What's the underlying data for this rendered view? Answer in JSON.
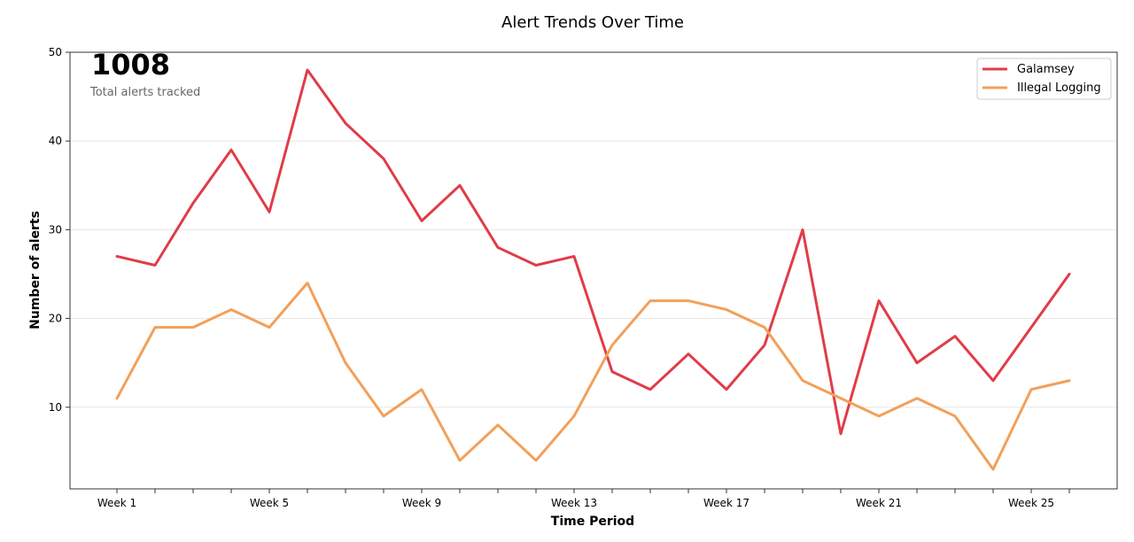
{
  "chart_data": {
    "type": "line",
    "title": "Alert Trends Over Time",
    "xlabel": "Time Period",
    "ylabel": "Number of alerts",
    "ylim": [
      0.8,
      50
    ],
    "yticks": [
      10,
      20,
      30,
      40,
      50
    ],
    "xtick_labels": [
      {
        "index": 0,
        "label": "Week 1"
      },
      {
        "index": 4,
        "label": "Week 5"
      },
      {
        "index": 8,
        "label": "Week 9"
      },
      {
        "index": 12,
        "label": "Week 13"
      },
      {
        "index": 16,
        "label": "Week 17"
      },
      {
        "index": 20,
        "label": "Week 21"
      },
      {
        "index": 24,
        "label": "Week 25"
      }
    ],
    "grid": "horizontal",
    "legend_position": "top-right",
    "series": [
      {
        "name": "Galamsey",
        "color": "#e03c48",
        "values": [
          27,
          26,
          33,
          39,
          32,
          48,
          42,
          38,
          31,
          35,
          28,
          26,
          27,
          14,
          12,
          16,
          12,
          17,
          30,
          7,
          22,
          15,
          18,
          13,
          19,
          25
        ]
      },
      {
        "name": "Illegal Logging",
        "color": "#f2a05a",
        "values": [
          11,
          19,
          19,
          21,
          19,
          24,
          15,
          9,
          12,
          4,
          8,
          4,
          9,
          17,
          22,
          22,
          21,
          19,
          13,
          11,
          9,
          11,
          9,
          3,
          12,
          13
        ]
      }
    ]
  },
  "summary": {
    "total": "1008",
    "caption": "Total alerts tracked"
  }
}
